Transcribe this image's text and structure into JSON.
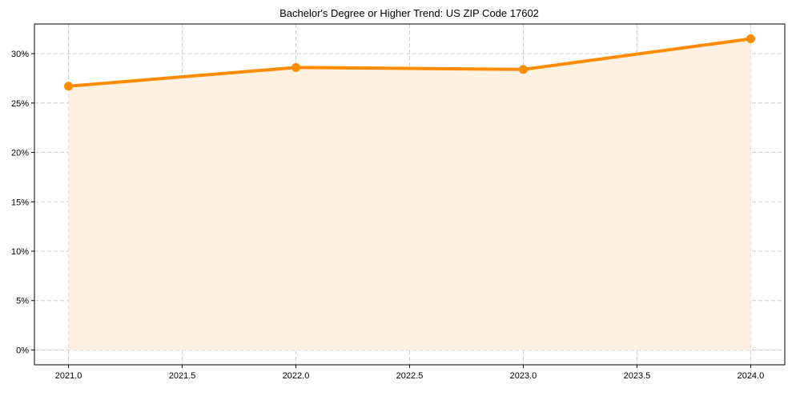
{
  "chart_data": {
    "type": "line",
    "title": "Bachelor's Degree or Higher Trend: US ZIP Code 17602",
    "xlabel": "",
    "ylabel": "",
    "x": [
      2021,
      2022,
      2023,
      2024
    ],
    "series": [
      {
        "name": "Bachelor's Degree or Higher",
        "values": [
          26.7,
          28.6,
          28.4,
          31.5
        ],
        "color": "#ff8c00",
        "fill_color": "#fff1e2"
      }
    ],
    "xlim": [
      2020.85,
      2024.15
    ],
    "ylim": [
      -1.5,
      33
    ],
    "xticks": [
      2021.0,
      2021.5,
      2022.0,
      2022.5,
      2023.0,
      2023.5,
      2024.0
    ],
    "xtick_labels": [
      "2021.0",
      "2021.5",
      "2022.0",
      "2022.5",
      "2023.0",
      "2023.5",
      "2024.0"
    ],
    "yticks": [
      0,
      5,
      10,
      15,
      20,
      25,
      30
    ],
    "ytick_labels": [
      "0%",
      "5%",
      "10%",
      "15%",
      "20%",
      "25%",
      "30%"
    ],
    "grid": true,
    "legend": "none"
  }
}
